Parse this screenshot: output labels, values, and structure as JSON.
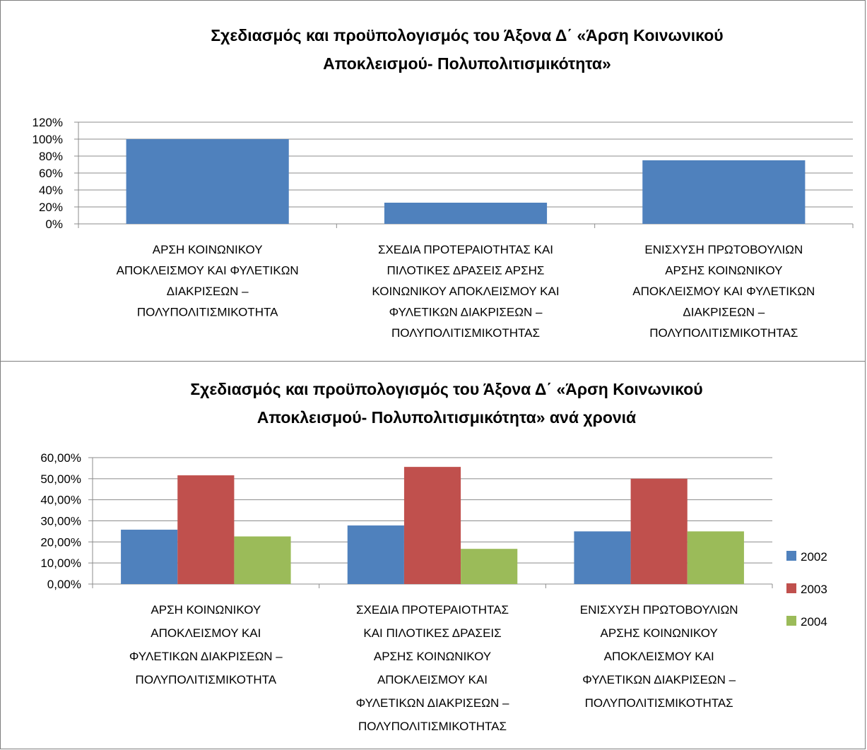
{
  "chart_data": [
    {
      "type": "bar",
      "title_lines": [
        "Σχεδιασμός και προϋπολογισμός του Άξονα Δ΄ «Άρση Κοινωνικού",
        "Αποκλεισμού- Πολυπολιτισμικότητα»"
      ],
      "categories": [
        [
          "ΑΡΣΗ ΚΟΙΝΩΝΙΚΟΥ",
          "ΑΠΟΚΛΕΙΣΜΟΥ ΚΑΙ ΦΥΛΕΤΙΚΩΝ",
          "ΔΙΑΚΡΙΣΕΩΝ –",
          "ΠΟΛΥΠΟΛΙΤΙΣΜΙΚΟΤΗΤΑ"
        ],
        [
          "ΣΧΕΔΙΑ ΠΡΟΤΕΡΑΙΟΤΗΤΑΣ ΚΑΙ",
          "ΠΙΛΟΤΙΚΕΣ ΔΡΑΣΕΙΣ ΑΡΣΗΣ",
          "ΚΟΙΝΩΝΙΚΟΥ ΑΠΟΚΛΕΙΣΜΟΥ ΚΑΙ",
          "ΦΥΛΕΤΙΚΩΝ ΔΙΑΚΡΙΣΕΩΝ –",
          "ΠΟΛΥΠΟΛΙΤΙΣΜΙΚΟΤΗΤΑΣ"
        ],
        [
          "ΕΝΙΣΧΥΣΗ ΠΡΩΤΟΒΟΥΛΙΩΝ",
          "ΑΡΣΗΣ ΚΟΙΝΩΝΙΚΟΥ",
          "ΑΠΟΚΛΕΙΣΜΟΥ ΚΑΙ ΦΥΛΕΤΙΚΩΝ",
          "ΔΙΑΚΡΙΣΕΩΝ –",
          "ΠΟΛΥΠΟΛΙΤΙΣΜΙΚΟΤΗΤΑΣ"
        ]
      ],
      "series": [
        {
          "values": [
            100,
            25,
            75
          ],
          "color": "#4f81bd"
        }
      ],
      "ylim": [
        0,
        120
      ],
      "yticks": [
        "0%",
        "20%",
        "40%",
        "60%",
        "80%",
        "100%",
        "120%"
      ],
      "grid": true,
      "legend": "none"
    },
    {
      "type": "bar",
      "title_lines": [
        "Σχεδιασμός και προϋπολογισμός του Άξονα Δ΄ «Άρση Κοινωνικού",
        "Αποκλεισμού- Πολυπολιτισμικότητα» ανά χρονιά"
      ],
      "categories": [
        [
          "ΑΡΣΗ ΚΟΙΝΩΝΙΚΟΥ",
          "ΑΠΟΚΛΕΙΣΜΟΥ ΚΑΙ",
          "ΦΥΛΕΤΙΚΩΝ ΔΙΑΚΡΙΣΕΩΝ –",
          "ΠΟΛΥΠΟΛΙΤΙΣΜΙΚΟΤΗΤΑ"
        ],
        [
          "ΣΧΕΔΙΑ ΠΡΟΤΕΡΑΙΟΤΗΤΑΣ",
          "ΚΑΙ ΠΙΛΟΤΙΚΕΣ ΔΡΑΣΕΙΣ",
          "ΑΡΣΗΣ ΚΟΙΝΩΝΙΚΟΥ",
          "ΑΠΟΚΛΕΙΣΜΟΥ ΚΑΙ",
          "ΦΥΛΕΤΙΚΩΝ ΔΙΑΚΡΙΣΕΩΝ –",
          "ΠΟΛΥΠΟΛΙΤΙΣΜΙΚΟΤΗΤΑΣ"
        ],
        [
          "ΕΝΙΣΧΥΣΗ ΠΡΩΤΟΒΟΥΛΙΩΝ",
          "ΑΡΣΗΣ ΚΟΙΝΩΝΙΚΟΥ",
          "ΑΠΟΚΛΕΙΣΜΟΥ ΚΑΙ",
          "ΦΥΛΕΤΙΚΩΝ ΔΙΑΚΡΙΣΕΩΝ –",
          "ΠΟΛΥΠΟΛΙΤΙΣΜΙΚΟΤΗΤΑΣ"
        ]
      ],
      "series": [
        {
          "name": "2002",
          "values": [
            25.8,
            27.8,
            25.0
          ],
          "color": "#4f81bd"
        },
        {
          "name": "2003",
          "values": [
            51.6,
            55.6,
            50.0
          ],
          "color": "#c0504d"
        },
        {
          "name": "2004",
          "values": [
            22.6,
            16.7,
            25.0
          ],
          "color": "#9bbb59"
        }
      ],
      "ylim": [
        0,
        60
      ],
      "yticks": [
        "0,00%",
        "10,00%",
        "20,00%",
        "30,00%",
        "40,00%",
        "50,00%",
        "60,00%"
      ],
      "grid": true,
      "legend": "right"
    }
  ]
}
